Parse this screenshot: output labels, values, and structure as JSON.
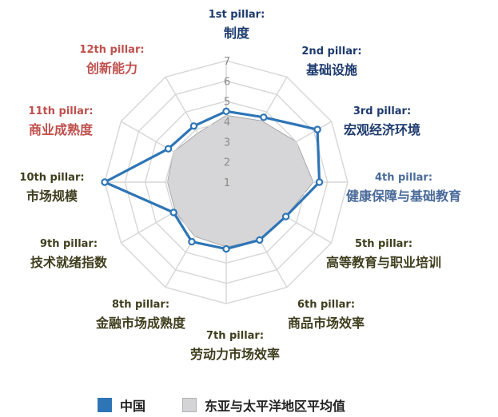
{
  "chart_data": {
    "type": "radar",
    "axis_min": 1,
    "axis_max": 7,
    "tick_labels": [
      "1",
      "2",
      "3",
      "4",
      "5",
      "6",
      "7"
    ],
    "pillars": [
      {
        "num": "1st pillar:",
        "name": "制度",
        "color": "#1d3a6e"
      },
      {
        "num": "2nd pillar:",
        "name": "基础设施",
        "color": "#1d3a6e"
      },
      {
        "num": "3rd pillar:",
        "name": "宏观经济环境",
        "color": "#1d3a6e"
      },
      {
        "num": "4th pillar:",
        "name": "健康保障与基础教育",
        "color": "#4a6a9a"
      },
      {
        "num": "5th pillar:",
        "name": "高等教育与职业培训",
        "color": "#3e3e1e"
      },
      {
        "num": "6th pillar:",
        "name": "商品市场效率",
        "color": "#3e3e1e"
      },
      {
        "num": "7th pillar:",
        "name": "劳动力市场效率",
        "color": "#3e3e1e"
      },
      {
        "num": "8th pillar:",
        "name": "金融市场成熟度",
        "color": "#3e3e1e"
      },
      {
        "num": "9th pillar:",
        "name": "技术就绪指数",
        "color": "#3e3e1e"
      },
      {
        "num": "10th pillar:",
        "name": "市场规模",
        "color": "#3e3e1e"
      },
      {
        "num": "11th pillar:",
        "name": "商业成熟度",
        "color": "#c0504d"
      },
      {
        "num": "12th pillar:",
        "name": "创新能力",
        "color": "#c0504d"
      }
    ],
    "series": [
      {
        "name": "中国",
        "color": "#2e75b6",
        "values": [
          4.5,
          4.7,
          6.2,
          5.6,
          4.4,
          4.3,
          4.3,
          4.4,
          4.0,
          7.0,
          4.3,
          4.2
        ]
      },
      {
        "name": "东亚与太平洋地区平均值",
        "color": "#d4d4d6",
        "values": [
          4.3,
          4.5,
          5.0,
          5.3,
          4.4,
          4.3,
          4.2,
          4.1,
          3.9,
          3.9,
          4.0,
          3.8
        ]
      }
    ],
    "title": "",
    "xlabel": "",
    "ylabel": "",
    "grid": true,
    "legend": "bottom"
  }
}
